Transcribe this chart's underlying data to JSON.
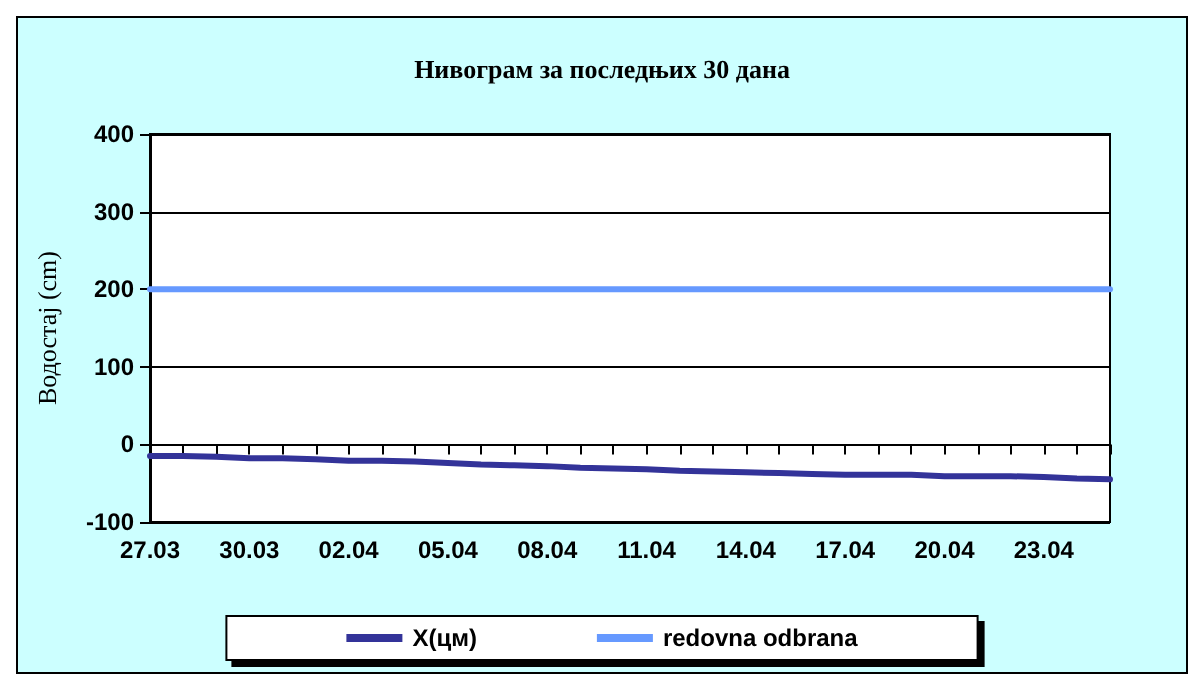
{
  "chart_data": {
    "type": "line",
    "title": "Нивограм за последњих 30 дана",
    "ylabel": "Водостај (cm)",
    "categories": [
      "27.03",
      null,
      null,
      "30.03",
      null,
      null,
      "02.04",
      null,
      null,
      "05.04",
      null,
      null,
      "08.04",
      null,
      null,
      "11.04",
      null,
      null,
      "14.04",
      null,
      null,
      "17.04",
      null,
      null,
      "20.04",
      null,
      null,
      "23.04",
      null,
      null
    ],
    "series": [
      {
        "name": "X(цм)",
        "color": "#333399",
        "values": [
          -15,
          -15,
          -16,
          -18,
          -18,
          -19,
          -21,
          -21,
          -22,
          -24,
          -26,
          -27,
          -28,
          -30,
          -31,
          -32,
          -34,
          -35,
          -36,
          -37,
          -38,
          -39,
          -39,
          -39,
          -41,
          -41,
          -41,
          -42,
          -44,
          -45
        ]
      },
      {
        "name": "redovna odbrana",
        "color": "#6699ff",
        "values": [
          200,
          200,
          200,
          200,
          200,
          200,
          200,
          200,
          200,
          200,
          200,
          200,
          200,
          200,
          200,
          200,
          200,
          200,
          200,
          200,
          200,
          200,
          200,
          200,
          200,
          200,
          200,
          200,
          200,
          200
        ]
      }
    ],
    "ylim": [
      -100,
      400
    ],
    "yticks": [
      -100,
      0,
      100,
      200,
      300,
      400
    ],
    "grid": "y",
    "legend": "bottom",
    "marker": "none",
    "line_style": "solid"
  }
}
